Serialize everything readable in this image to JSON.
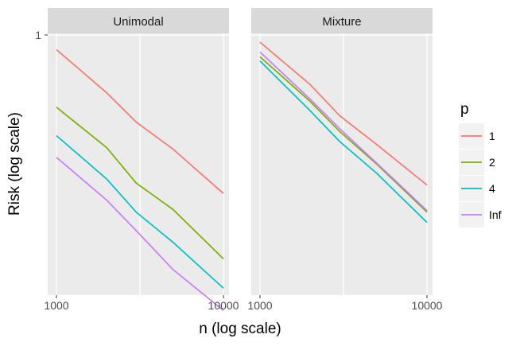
{
  "chart_data": {
    "type": "line",
    "xlabel": "n (log scale)",
    "ylabel": "Risk (log scale)",
    "x_scale": "log",
    "y_scale": "log",
    "xlim": [
      870,
      11500
    ],
    "ylim": [
      0.155,
      1.0
    ],
    "x_ticks": [
      {
        "value": 1000,
        "label": "1000"
      },
      {
        "value": 10000,
        "label": "10000"
      }
    ],
    "y_ticks": [
      {
        "value": 1,
        "label": "1"
      }
    ],
    "grid": true,
    "legend": {
      "title": "p",
      "position": "right",
      "items": [
        {
          "label": "1",
          "color": "#F8766D"
        },
        {
          "label": "2",
          "color": "#7CAE00"
        },
        {
          "label": "4",
          "color": "#00BFC4"
        },
        {
          "label": "Inf",
          "color": "#C77CFF"
        }
      ]
    },
    "panels": [
      {
        "strip": "Unimodal",
        "series": [
          {
            "name": "1",
            "x": [
              1000,
              2000,
              3000,
              5000,
              10000
            ],
            "y": [
              0.9,
              0.66,
              0.535,
              0.44,
              0.32
            ]
          },
          {
            "name": "2",
            "x": [
              1000,
              2000,
              3000,
              5000,
              10000
            ],
            "y": [
              0.595,
              0.445,
              0.345,
              0.285,
              0.2
            ]
          },
          {
            "name": "4",
            "x": [
              1000,
              2000,
              3000,
              5000,
              10000
            ],
            "y": [
              0.485,
              0.355,
              0.28,
              0.225,
              0.162
            ]
          },
          {
            "name": "Inf",
            "x": [
              1000,
              2000,
              3000,
              5000,
              10000
            ],
            "y": [
              0.415,
              0.305,
              0.245,
              0.185,
              0.138
            ]
          }
        ]
      },
      {
        "strip": "Mixture",
        "series": [
          {
            "name": "1",
            "x": [
              1000,
              2000,
              3000,
              5000,
              10000
            ],
            "y": [
              0.95,
              0.7,
              0.56,
              0.455,
              0.34
            ]
          },
          {
            "name": "2",
            "x": [
              1000,
              2000,
              3000,
              5000,
              10000
            ],
            "y": [
              0.855,
              0.62,
              0.5,
              0.395,
              0.28
            ]
          },
          {
            "name": "4",
            "x": [
              1000,
              2000,
              3000,
              5000,
              10000
            ],
            "y": [
              0.83,
              0.58,
              0.465,
              0.37,
              0.26
            ]
          },
          {
            "name": "Inf",
            "x": [
              1000,
              2000,
              3000,
              5000,
              10000
            ],
            "y": [
              0.885,
              0.63,
              0.51,
              0.398,
              0.283
            ]
          }
        ]
      }
    ]
  }
}
